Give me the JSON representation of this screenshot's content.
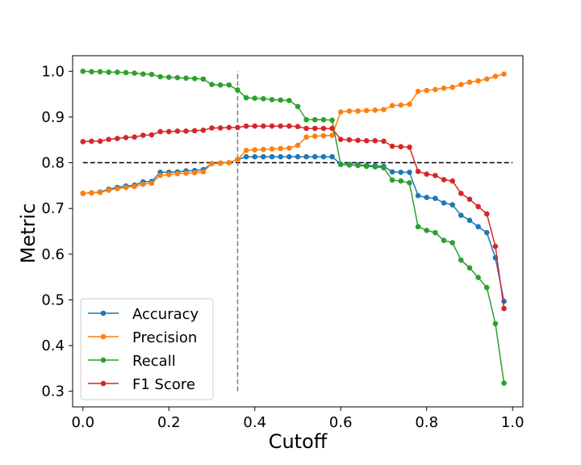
{
  "chart_data": {
    "type": "line",
    "title": "",
    "xlabel": "Cutoff",
    "ylabel": "Metric",
    "xlim": [
      -0.024,
      1.024
    ],
    "ylim": [
      0.266,
      1.034
    ],
    "xticks": [
      "0.0",
      "0.2",
      "0.4",
      "0.6",
      "0.8",
      "1.0"
    ],
    "yticks": [
      "0.3",
      "0.4",
      "0.5",
      "0.6",
      "0.7",
      "0.8",
      "0.9",
      "1.0"
    ],
    "grid": false,
    "legend": "lower-left",
    "reference_lines": [
      {
        "orientation": "horizontal",
        "value": 0.8,
        "from": 0.0,
        "to": 1.0,
        "style": "dashed",
        "color": "#000000"
      },
      {
        "orientation": "vertical",
        "value": 0.36,
        "from": 0.3,
        "to": 1.0,
        "style": "dashed",
        "color": "#7f7f7f"
      }
    ],
    "x": [
      0.0,
      0.02,
      0.04,
      0.06,
      0.08,
      0.1,
      0.12,
      0.14,
      0.16,
      0.18,
      0.2,
      0.22,
      0.24,
      0.26,
      0.28,
      0.3,
      0.32,
      0.34,
      0.36,
      0.38,
      0.4,
      0.42,
      0.44,
      0.46,
      0.48,
      0.5,
      0.52,
      0.54,
      0.56,
      0.58,
      0.6,
      0.62,
      0.64,
      0.66,
      0.68,
      0.7,
      0.72,
      0.74,
      0.76,
      0.78,
      0.8,
      0.82,
      0.84,
      0.86,
      0.88,
      0.9,
      0.92,
      0.94,
      0.96,
      0.98
    ],
    "series": [
      {
        "name": "Accuracy",
        "color": "#1f77b4",
        "values": [
          0.733,
          0.734,
          0.736,
          0.742,
          0.746,
          0.749,
          0.751,
          0.758,
          0.759,
          0.779,
          0.779,
          0.78,
          0.782,
          0.783,
          0.785,
          0.798,
          0.799,
          0.8,
          0.807,
          0.813,
          0.813,
          0.813,
          0.813,
          0.813,
          0.813,
          0.813,
          0.813,
          0.813,
          0.813,
          0.813,
          0.797,
          0.796,
          0.795,
          0.794,
          0.793,
          0.792,
          0.78,
          0.779,
          0.779,
          0.728,
          0.724,
          0.722,
          0.712,
          0.708,
          0.685,
          0.674,
          0.66,
          0.647,
          0.592,
          0.497
        ]
      },
      {
        "name": "Precision",
        "color": "#ff7f0e",
        "values": [
          0.733,
          0.734,
          0.735,
          0.74,
          0.743,
          0.746,
          0.748,
          0.753,
          0.755,
          0.772,
          0.774,
          0.776,
          0.777,
          0.778,
          0.78,
          0.798,
          0.799,
          0.8,
          0.807,
          0.827,
          0.828,
          0.829,
          0.83,
          0.831,
          0.832,
          0.838,
          0.856,
          0.858,
          0.859,
          0.86,
          0.911,
          0.913,
          0.913,
          0.914,
          0.915,
          0.916,
          0.925,
          0.926,
          0.928,
          0.956,
          0.958,
          0.96,
          0.963,
          0.965,
          0.971,
          0.976,
          0.979,
          0.983,
          0.989,
          0.994
        ]
      },
      {
        "name": "Recall",
        "color": "#2ca02c",
        "values": [
          1.0,
          0.999,
          0.999,
          0.998,
          0.998,
          0.997,
          0.996,
          0.994,
          0.993,
          0.988,
          0.987,
          0.986,
          0.985,
          0.984,
          0.983,
          0.971,
          0.97,
          0.97,
          0.959,
          0.942,
          0.941,
          0.94,
          0.938,
          0.937,
          0.936,
          0.923,
          0.894,
          0.894,
          0.894,
          0.893,
          0.796,
          0.795,
          0.794,
          0.792,
          0.791,
          0.789,
          0.762,
          0.76,
          0.756,
          0.66,
          0.652,
          0.647,
          0.63,
          0.625,
          0.587,
          0.57,
          0.549,
          0.527,
          0.448,
          0.318
        ]
      },
      {
        "name": "F1 Score",
        "color": "#d62728",
        "values": [
          0.846,
          0.847,
          0.847,
          0.851,
          0.853,
          0.855,
          0.856,
          0.86,
          0.861,
          0.868,
          0.868,
          0.869,
          0.869,
          0.87,
          0.871,
          0.876,
          0.876,
          0.877,
          0.877,
          0.88,
          0.88,
          0.88,
          0.88,
          0.88,
          0.88,
          0.879,
          0.875,
          0.875,
          0.875,
          0.875,
          0.851,
          0.85,
          0.849,
          0.848,
          0.848,
          0.847,
          0.836,
          0.835,
          0.834,
          0.781,
          0.775,
          0.772,
          0.763,
          0.76,
          0.733,
          0.72,
          0.704,
          0.688,
          0.617,
          0.481
        ]
      }
    ]
  }
}
